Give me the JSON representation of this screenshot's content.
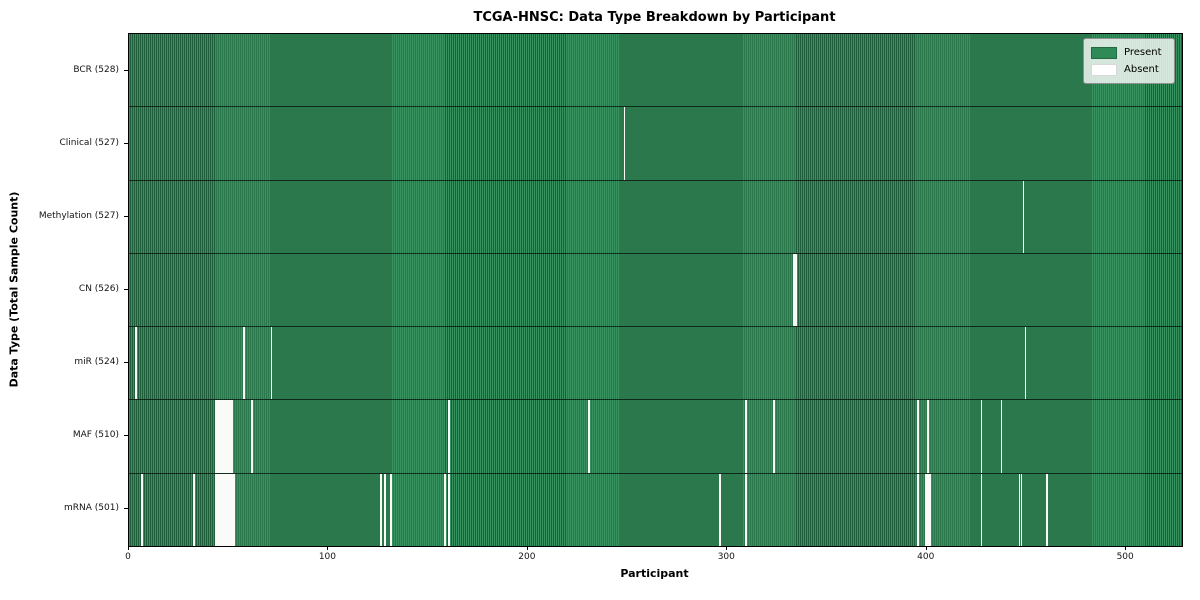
{
  "title": "TCGA-HNSC: Data Type Breakdown by Participant",
  "axes": {
    "xlabel": "Participant",
    "ylabel": "Data Type (Total Sample Count)"
  },
  "legend": {
    "present_label": "Present",
    "absent_label": "Absent",
    "present_color": "#2e8b57",
    "absent_color": "#ffffff"
  },
  "colors": {
    "present_fill": "#2e8b57",
    "present_stripe_light": "#37925f",
    "present_stripe_dark": "#1e5e3a",
    "absent_fill": "#ffffff",
    "plot_border": "#000000"
  },
  "chart_data": {
    "type": "heatmap",
    "title": "TCGA-HNSC: Data Type Breakdown by Participant",
    "xlabel": "Participant",
    "ylabel": "Data Type (Total Sample Count)",
    "x_range": [
      0,
      528
    ],
    "x_ticks": [
      0,
      100,
      200,
      300,
      400,
      500
    ],
    "n_participants": 528,
    "grid": false,
    "legend_position": "upper right",
    "legend": [
      "Present",
      "Absent"
    ],
    "value_encoding": {
      "present": "#2e8b57",
      "absent": "#ffffff"
    },
    "rows": [
      {
        "data_type": "BCR",
        "label": "BCR (528)",
        "present_count": 528,
        "absent_count": 0,
        "absent_participants": []
      },
      {
        "data_type": "Clinical",
        "label": "Clinical (527)",
        "present_count": 527,
        "absent_count": 1,
        "absent_participants": [
          248
        ]
      },
      {
        "data_type": "Methylation",
        "label": "Methylation (527)",
        "present_count": 527,
        "absent_count": 1,
        "absent_participants": [
          448
        ]
      },
      {
        "data_type": "CN",
        "label": "CN (526)",
        "present_count": 526,
        "absent_count": 2,
        "absent_participants": [
          333,
          334
        ]
      },
      {
        "data_type": "miR",
        "label": "miR (524)",
        "present_count": 524,
        "absent_count": 4,
        "absent_participants": [
          3,
          57,
          71,
          449
        ]
      },
      {
        "data_type": "MAF",
        "label": "MAF (510)",
        "present_count": 510,
        "absent_count": 18,
        "absent_participants": [
          43,
          44,
          45,
          46,
          47,
          48,
          49,
          50,
          51,
          61,
          160,
          230,
          309,
          323,
          395,
          400,
          427,
          437
        ]
      },
      {
        "data_type": "mRNA",
        "label": "mRNA (501)",
        "present_count": 501,
        "absent_count": 27,
        "absent_participants": [
          6,
          32,
          43,
          44,
          45,
          46,
          47,
          48,
          49,
          50,
          51,
          52,
          126,
          128,
          131,
          158,
          160,
          296,
          309,
          395,
          399,
          400,
          401,
          427,
          446,
          447,
          460
        ]
      }
    ]
  }
}
